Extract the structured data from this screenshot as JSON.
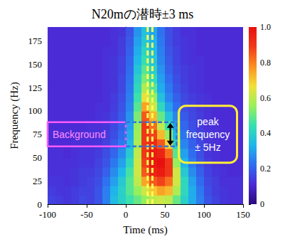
{
  "chart_data": {
    "type": "heatmap",
    "title": "N20mの潜時±3 ms",
    "xlabel": "Time (ms)",
    "ylabel": "Frequency (Hz)",
    "xlim": [
      -100,
      150
    ],
    "xticks": [
      -100,
      -50,
      0,
      50,
      100,
      150
    ],
    "ylim": [
      0,
      190
    ],
    "yticks": [
      0,
      25,
      50,
      75,
      100,
      125,
      150,
      175
    ],
    "cells": {
      "x": [
        -95,
        -85,
        -75,
        -65,
        -55,
        -45,
        -35,
        -25,
        -15,
        -5,
        5,
        15,
        25,
        35,
        45,
        55,
        65,
        75,
        85,
        95,
        105,
        115,
        125,
        135,
        145
      ],
      "y": [
        5,
        15,
        25,
        35,
        45,
        55,
        65,
        75,
        85,
        95,
        105,
        115,
        125,
        135,
        145,
        155,
        165,
        175,
        185
      ],
      "values": [
        [
          0.15,
          0.14,
          0.13,
          0.14,
          0.16,
          0.15,
          0.18,
          0.25,
          0.35,
          0.4,
          0.45,
          0.5,
          0.55,
          0.6,
          0.62,
          0.6,
          0.5,
          0.4,
          0.32,
          0.25,
          0.18,
          0.15,
          0.13,
          0.12,
          0.12
        ],
        [
          0.14,
          0.13,
          0.13,
          0.14,
          0.15,
          0.15,
          0.18,
          0.25,
          0.33,
          0.4,
          0.48,
          0.55,
          0.62,
          0.7,
          0.75,
          0.72,
          0.58,
          0.42,
          0.32,
          0.24,
          0.17,
          0.14,
          0.13,
          0.12,
          0.12
        ],
        [
          0.13,
          0.13,
          0.12,
          0.13,
          0.14,
          0.15,
          0.17,
          0.23,
          0.3,
          0.38,
          0.48,
          0.6,
          0.75,
          0.85,
          0.88,
          0.82,
          0.62,
          0.42,
          0.3,
          0.22,
          0.16,
          0.14,
          0.12,
          0.12,
          0.12
        ],
        [
          0.12,
          0.12,
          0.12,
          0.13,
          0.14,
          0.14,
          0.16,
          0.2,
          0.27,
          0.34,
          0.46,
          0.62,
          0.85,
          0.95,
          0.97,
          0.9,
          0.62,
          0.38,
          0.27,
          0.2,
          0.15,
          0.13,
          0.12,
          0.11,
          0.11
        ],
        [
          0.12,
          0.12,
          0.12,
          0.12,
          0.13,
          0.13,
          0.15,
          0.18,
          0.24,
          0.3,
          0.42,
          0.62,
          0.88,
          0.98,
          1.0,
          0.9,
          0.55,
          0.33,
          0.24,
          0.18,
          0.14,
          0.12,
          0.11,
          0.11,
          0.11
        ],
        [
          0.12,
          0.12,
          0.11,
          0.12,
          0.13,
          0.13,
          0.14,
          0.17,
          0.21,
          0.27,
          0.38,
          0.6,
          0.9,
          0.97,
          0.95,
          0.82,
          0.48,
          0.3,
          0.22,
          0.17,
          0.13,
          0.12,
          0.11,
          0.11,
          0.11
        ],
        [
          0.11,
          0.11,
          0.11,
          0.12,
          0.12,
          0.12,
          0.13,
          0.15,
          0.19,
          0.24,
          0.34,
          0.58,
          0.9,
          0.93,
          0.85,
          0.68,
          0.4,
          0.26,
          0.2,
          0.16,
          0.13,
          0.12,
          0.11,
          0.11,
          0.11
        ],
        [
          0.11,
          0.11,
          0.11,
          0.11,
          0.12,
          0.12,
          0.12,
          0.14,
          0.17,
          0.22,
          0.32,
          0.56,
          0.9,
          0.88,
          0.72,
          0.55,
          0.34,
          0.23,
          0.18,
          0.15,
          0.13,
          0.12,
          0.11,
          0.11,
          0.11
        ],
        [
          0.11,
          0.11,
          0.11,
          0.11,
          0.11,
          0.12,
          0.12,
          0.13,
          0.16,
          0.2,
          0.3,
          0.55,
          0.9,
          0.82,
          0.6,
          0.45,
          0.3,
          0.21,
          0.17,
          0.14,
          0.12,
          0.12,
          0.11,
          0.11,
          0.11
        ],
        [
          0.11,
          0.11,
          0.11,
          0.11,
          0.11,
          0.11,
          0.12,
          0.13,
          0.15,
          0.19,
          0.28,
          0.52,
          0.85,
          0.72,
          0.5,
          0.36,
          0.26,
          0.19,
          0.16,
          0.14,
          0.12,
          0.11,
          0.11,
          0.11,
          0.11
        ],
        [
          0.11,
          0.11,
          0.11,
          0.11,
          0.11,
          0.11,
          0.12,
          0.12,
          0.14,
          0.18,
          0.26,
          0.48,
          0.75,
          0.62,
          0.42,
          0.3,
          0.22,
          0.17,
          0.15,
          0.13,
          0.12,
          0.11,
          0.11,
          0.11,
          0.11
        ],
        [
          0.11,
          0.11,
          0.11,
          0.11,
          0.11,
          0.11,
          0.11,
          0.12,
          0.14,
          0.17,
          0.25,
          0.45,
          0.65,
          0.55,
          0.36,
          0.26,
          0.2,
          0.16,
          0.14,
          0.13,
          0.12,
          0.11,
          0.11,
          0.11,
          0.11
        ],
        [
          0.11,
          0.11,
          0.11,
          0.11,
          0.11,
          0.11,
          0.11,
          0.12,
          0.13,
          0.16,
          0.24,
          0.42,
          0.58,
          0.48,
          0.32,
          0.24,
          0.18,
          0.15,
          0.13,
          0.12,
          0.11,
          0.11,
          0.11,
          0.11,
          0.11
        ],
        [
          0.11,
          0.11,
          0.11,
          0.11,
          0.11,
          0.11,
          0.11,
          0.12,
          0.13,
          0.16,
          0.23,
          0.4,
          0.52,
          0.43,
          0.3,
          0.22,
          0.17,
          0.14,
          0.13,
          0.12,
          0.11,
          0.11,
          0.11,
          0.11,
          0.11
        ],
        [
          0.11,
          0.11,
          0.11,
          0.11,
          0.11,
          0.11,
          0.11,
          0.12,
          0.13,
          0.15,
          0.22,
          0.37,
          0.48,
          0.4,
          0.28,
          0.2,
          0.16,
          0.14,
          0.13,
          0.12,
          0.11,
          0.11,
          0.11,
          0.11,
          0.11
        ],
        [
          0.11,
          0.11,
          0.11,
          0.11,
          0.11,
          0.11,
          0.11,
          0.12,
          0.13,
          0.15,
          0.21,
          0.34,
          0.44,
          0.37,
          0.26,
          0.19,
          0.15,
          0.13,
          0.12,
          0.12,
          0.11,
          0.11,
          0.11,
          0.11,
          0.11
        ],
        [
          0.11,
          0.11,
          0.11,
          0.11,
          0.11,
          0.11,
          0.11,
          0.12,
          0.12,
          0.14,
          0.2,
          0.32,
          0.41,
          0.35,
          0.25,
          0.18,
          0.15,
          0.13,
          0.12,
          0.11,
          0.11,
          0.11,
          0.11,
          0.11,
          0.11
        ],
        [
          0.11,
          0.11,
          0.11,
          0.11,
          0.11,
          0.11,
          0.11,
          0.11,
          0.12,
          0.14,
          0.19,
          0.3,
          0.38,
          0.33,
          0.24,
          0.17,
          0.14,
          0.13,
          0.12,
          0.11,
          0.11,
          0.11,
          0.11,
          0.11,
          0.11
        ],
        [
          0.11,
          0.11,
          0.11,
          0.11,
          0.11,
          0.11,
          0.11,
          0.11,
          0.12,
          0.13,
          0.18,
          0.28,
          0.36,
          0.31,
          0.23,
          0.17,
          0.14,
          0.12,
          0.12,
          0.11,
          0.11,
          0.11,
          0.11,
          0.11,
          0.11
        ]
      ]
    },
    "colorbar": {
      "range": [
        0,
        1
      ],
      "ticks": [
        0,
        0.2,
        0.4,
        0.6,
        0.8,
        {
          "value": 1,
          "label": "1.0"
        }
      ]
    },
    "annotations": {
      "latency_lines": [
        28,
        34
      ],
      "background": {
        "label": "Background",
        "xlim": [
          -100,
          0
        ],
        "ylim": [
          62,
          88
        ]
      },
      "peak_band": {
        "label": [
          "peak",
          "frequency",
          "± 5Hz"
        ],
        "xlim": [
          0,
          65
        ],
        "ylim": [
          62,
          88
        ],
        "arrow_x": 57
      }
    }
  }
}
